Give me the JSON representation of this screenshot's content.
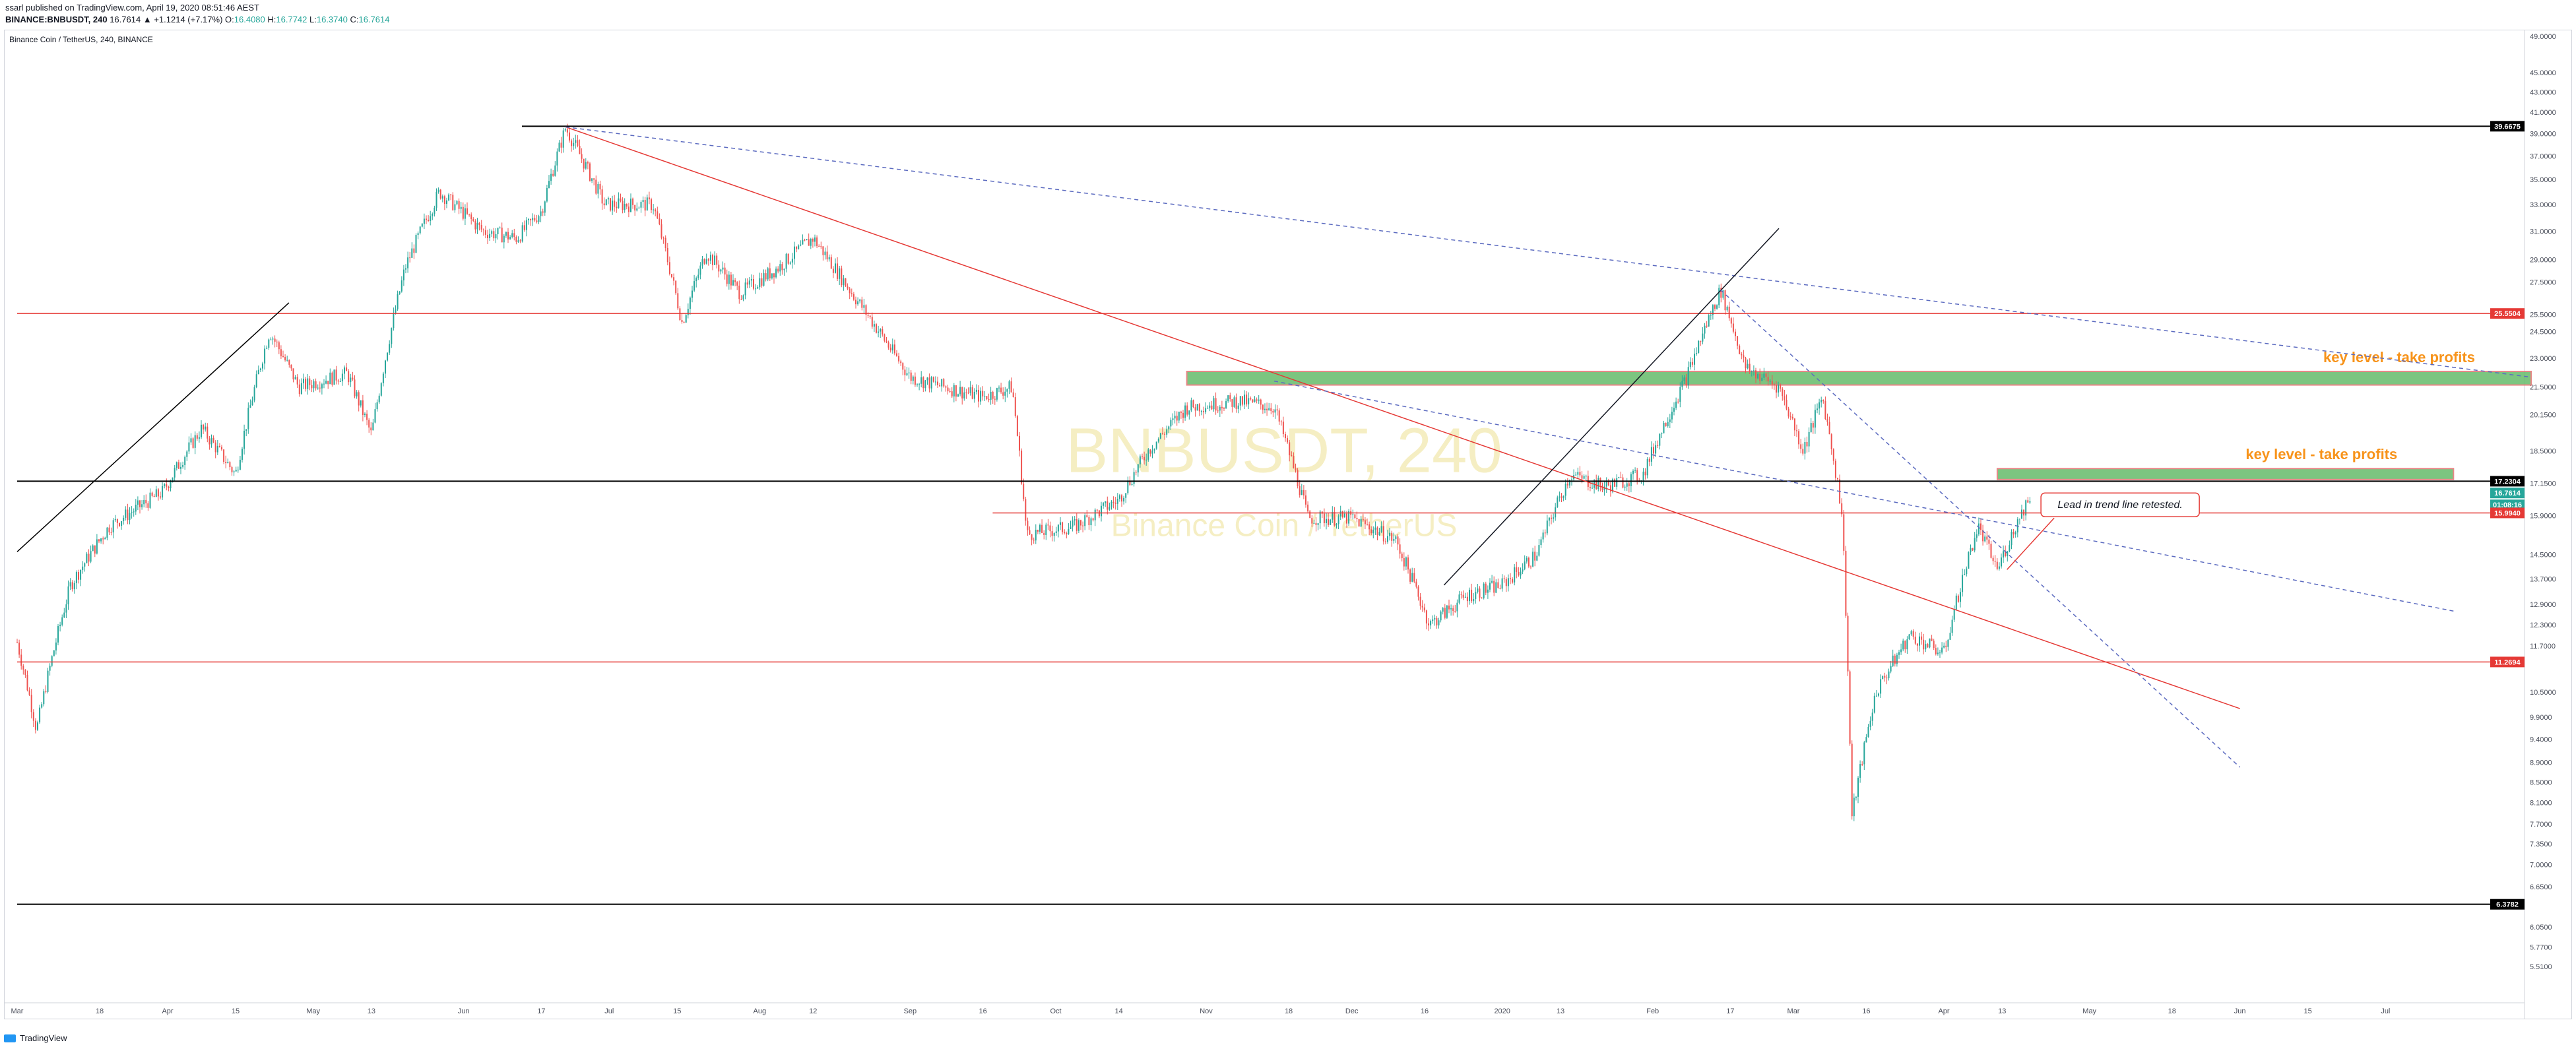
{
  "header": {
    "published_line": "ssarl published on TradingView.com, April 19, 2020 08:51:46 AEST",
    "symbol": "BINANCE:BNBUSDT, 240",
    "last": "16.7614",
    "change_arrow": "▲",
    "change": "+1.1214 (+7.17%)",
    "o_label": "O:",
    "o": "16.4080",
    "h_label": "H:",
    "h": "16.7742",
    "l_label": "L:",
    "l": "16.3740",
    "c_label": "C:",
    "c": "16.7614"
  },
  "chart_title": "Binance Coin / TetherUS, 240, BINANCE",
  "watermark": {
    "symbol": "BNBUSDT, 240",
    "name": "Binance Coin / TetherUS"
  },
  "footer": {
    "brand": "TradingView"
  },
  "colors": {
    "up": "#26a69a",
    "down": "#ef5350",
    "red_line": "#e53935",
    "blue_dash": "#5c6bc0",
    "black_line": "#000000",
    "zone_green": "#66bb6a",
    "zone_red": "#e57373",
    "annotation": "#f7931a",
    "watermark": "#f5eec3"
  },
  "chart_data": {
    "type": "candlestick",
    "y_axis_scale": "log",
    "ylim": [
      5.1,
      49.0
    ],
    "y_ticks": [
      "49.0000",
      "45.0000",
      "43.0000",
      "41.0000",
      "39.0000",
      "37.0000",
      "35.0000",
      "33.0000",
      "31.0000",
      "29.0000",
      "27.5000",
      "25.5000",
      "24.5000",
      "23.0000",
      "21.5000",
      "20.1500",
      "18.5000",
      "17.1500",
      "15.9000",
      "14.5000",
      "13.7000",
      "12.9000",
      "12.3000",
      "11.7000",
      "10.5000",
      "9.9000",
      "9.4000",
      "8.9000",
      "8.5000",
      "8.1000",
      "7.7000",
      "7.3500",
      "7.0000",
      "6.6500",
      "6.0500",
      "5.7700",
      "5.5100"
    ],
    "x_ticks": [
      "Mar",
      "18",
      "Apr",
      "15",
      "May",
      "13",
      "Jun",
      "17",
      "Jul",
      "15",
      "Aug",
      "12",
      "Sep",
      "16",
      "Oct",
      "14",
      "Nov",
      "18",
      "Dec",
      "16",
      "2020",
      "13",
      "Feb",
      "17",
      "Mar",
      "16",
      "Apr",
      "13",
      "May",
      "18",
      "Jun",
      "15",
      "Jul"
    ],
    "x_range": [
      "2019-03-01",
      "2020-07-31"
    ],
    "price_path": [
      [
        "2019-03-01",
        11.8
      ],
      [
        "2019-03-05",
        9.6
      ],
      [
        "2019-03-12",
        13.5
      ],
      [
        "2019-03-20",
        15.5
      ],
      [
        "2019-03-31",
        16.8
      ],
      [
        "2019-04-08",
        19.5
      ],
      [
        "2019-04-15",
        17.5
      ],
      [
        "2019-04-22",
        24.5
      ],
      [
        "2019-04-28",
        21.5
      ],
      [
        "2019-05-08",
        22.2
      ],
      [
        "2019-05-13",
        19.2
      ],
      [
        "2019-05-20",
        28.5
      ],
      [
        "2019-05-27",
        34.0
      ],
      [
        "2019-06-05",
        31.0
      ],
      [
        "2019-06-12",
        30.5
      ],
      [
        "2019-06-17",
        32.5
      ],
      [
        "2019-06-22",
        39.5
      ],
      [
        "2019-06-30",
        33.0
      ],
      [
        "2019-07-10",
        33.0
      ],
      [
        "2019-07-16",
        25.0
      ],
      [
        "2019-07-21",
        29.5
      ],
      [
        "2019-07-28",
        26.8
      ],
      [
        "2019-08-05",
        28.5
      ],
      [
        "2019-08-12",
        30.5
      ],
      [
        "2019-08-20",
        26.8
      ],
      [
        "2019-08-28",
        23.5
      ],
      [
        "2019-09-01",
        22.0
      ],
      [
        "2019-09-08",
        21.5
      ],
      [
        "2019-09-16",
        21.0
      ],
      [
        "2019-09-22",
        21.5
      ],
      [
        "2019-09-25",
        15.2
      ],
      [
        "2019-10-05",
        15.5
      ],
      [
        "2019-10-14",
        16.5
      ],
      [
        "2019-10-20",
        18.5
      ],
      [
        "2019-10-28",
        20.5
      ],
      [
        "2019-11-08",
        20.8
      ],
      [
        "2019-11-15",
        20.5
      ],
      [
        "2019-11-22",
        15.8
      ],
      [
        "2019-12-01",
        15.8
      ],
      [
        "2019-12-10",
        15.0
      ],
      [
        "2019-12-17",
        12.3
      ],
      [
        "2019-12-25",
        13.2
      ],
      [
        "2020-01-01",
        13.5
      ],
      [
        "2020-01-08",
        14.5
      ],
      [
        "2020-01-15",
        17.5
      ],
      [
        "2020-01-22",
        17.0
      ],
      [
        "2020-01-30",
        17.5
      ],
      [
        "2020-02-08",
        22.0
      ],
      [
        "2020-02-15",
        27.0
      ],
      [
        "2020-02-20",
        22.5
      ],
      [
        "2020-02-27",
        21.5
      ],
      [
        "2020-03-03",
        18.5
      ],
      [
        "2020-03-07",
        21.0
      ],
      [
        "2020-03-11",
        16.0
      ],
      [
        "2020-03-13",
        7.8
      ],
      [
        "2020-03-18",
        10.5
      ],
      [
        "2020-03-25",
        12.0
      ],
      [
        "2020-04-01",
        11.5
      ],
      [
        "2020-04-08",
        15.5
      ],
      [
        "2020-04-12",
        14.0
      ],
      [
        "2020-04-16",
        15.6
      ],
      [
        "2020-04-19",
        16.76
      ]
    ],
    "price_labels": [
      {
        "value": 39.6675,
        "label": "39.6675",
        "color": "#000000"
      },
      {
        "value": 25.5504,
        "label": "25.5504",
        "color": "#e53935"
      },
      {
        "value": 17.2304,
        "label": "17.2304",
        "color": "#000000"
      },
      {
        "value": 16.7614,
        "label": "16.7614",
        "color": "#26a69a"
      },
      {
        "value": 16.3,
        "label": "01:08:16",
        "color": "#26a69a"
      },
      {
        "value": 15.994,
        "label": "15.9940",
        "color": "#e53935"
      },
      {
        "value": 11.2694,
        "label": "11.2694",
        "color": "#e53935"
      },
      {
        "value": 6.3782,
        "label": "6.3782",
        "color": "#000000"
      }
    ],
    "horizontal_lines": [
      {
        "value": 39.6675,
        "from": "2019-06-13",
        "color": "#000000"
      },
      {
        "value": 25.5504,
        "from": "2019-03-01",
        "color": "#e53935"
      },
      {
        "value": 17.2304,
        "from": "2019-03-01",
        "color": "#000000"
      },
      {
        "value": 15.994,
        "from": "2019-09-18",
        "color": "#e53935"
      },
      {
        "value": 11.2694,
        "from": "2019-03-01",
        "color": "#e53935"
      },
      {
        "value": 6.3782,
        "from": "2019-03-01",
        "color": "#000000"
      }
    ],
    "trend_lines": [
      {
        "from": [
          "2019-03-01",
          14.6
        ],
        "to": [
          "2019-04-26",
          26.2
        ],
        "color": "#000000",
        "style": "solid"
      },
      {
        "from": [
          "2019-06-22",
          39.6
        ],
        "to": [
          "2020-06-01",
          10.1
        ],
        "color": "#e53935",
        "style": "solid"
      },
      {
        "from": [
          "2019-06-22",
          39.6
        ],
        "to": [
          "2020-07-31",
          22.0
        ],
        "color": "#5c6bc0",
        "style": "dashed"
      },
      {
        "from": [
          "2019-11-15",
          21.8
        ],
        "to": [
          "2020-07-15",
          12.7
        ],
        "color": "#5c6bc0",
        "style": "dashed"
      },
      {
        "from": [
          "2019-12-20",
          13.5
        ],
        "to": [
          "2020-02-27",
          31.2
        ],
        "color": "#131722",
        "style": "solid"
      },
      {
        "from": [
          "2020-02-15",
          27.0
        ],
        "to": [
          "2020-06-01",
          8.8
        ],
        "color": "#5c6bc0",
        "style": "dashed"
      }
    ],
    "zones": [
      {
        "from": "2019-10-28",
        "to": "2020-07-31",
        "low": 21.6,
        "high": 22.3,
        "label": "key level - take profits"
      },
      {
        "from": "2020-04-12",
        "to": "2020-07-15",
        "low": 17.3,
        "high": 17.75,
        "label": "key level - take profits"
      }
    ],
    "callout": {
      "text": "Lead in trend line retested.",
      "at": [
        "2020-04-14",
        14.0
      ],
      "box_at": [
        "2020-04-21",
        16.3
      ]
    }
  }
}
